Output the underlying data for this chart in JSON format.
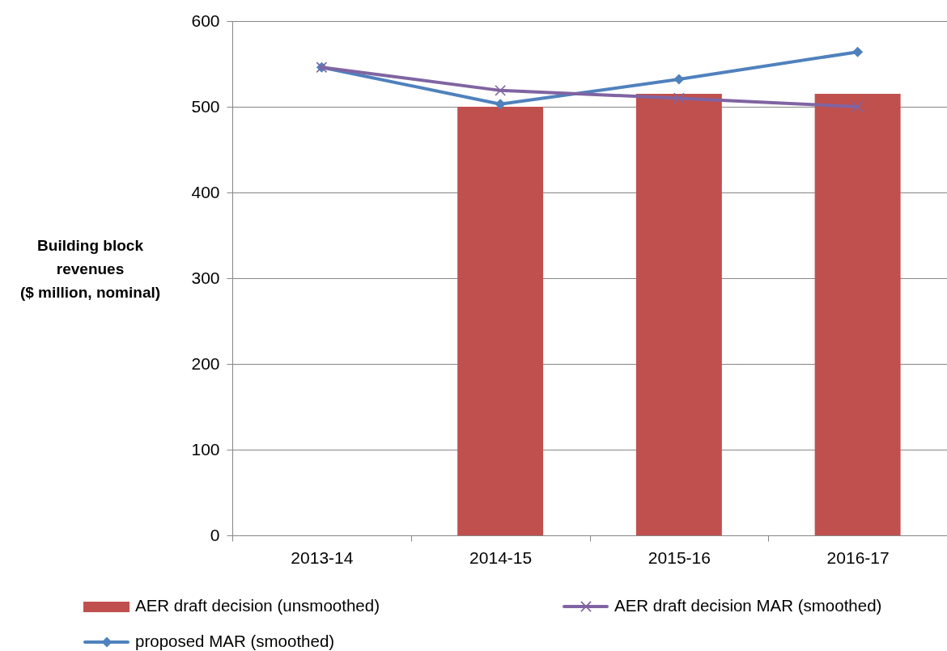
{
  "chart_data": {
    "type": "bar",
    "ylabel": "Building block revenues ($ million, nominal)",
    "categories": [
      "2013-14",
      "2014-15",
      "2015-16",
      "2016-17"
    ],
    "series": [
      {
        "name": "AER draft decision (unsmoothed)",
        "color": "#c0504d",
        "values": [
          null,
          500,
          515,
          515
        ]
      },
      {
        "name": "AER draft decision MAR (smoothed)",
        "type": "line",
        "color": "#8064a2",
        "marker": "cross",
        "values": [
          546,
          519,
          510,
          500
        ]
      },
      {
        "name": "proposed MAR (smoothed)",
        "type": "line",
        "color": "#4f81bd",
        "marker": "diamond",
        "values": [
          546,
          503,
          532,
          564
        ]
      }
    ],
    "ylim": [
      0,
      600
    ],
    "yticks": [
      0,
      100,
      200,
      300,
      400,
      500,
      600
    ],
    "grid": "y",
    "legend": "bottom"
  }
}
